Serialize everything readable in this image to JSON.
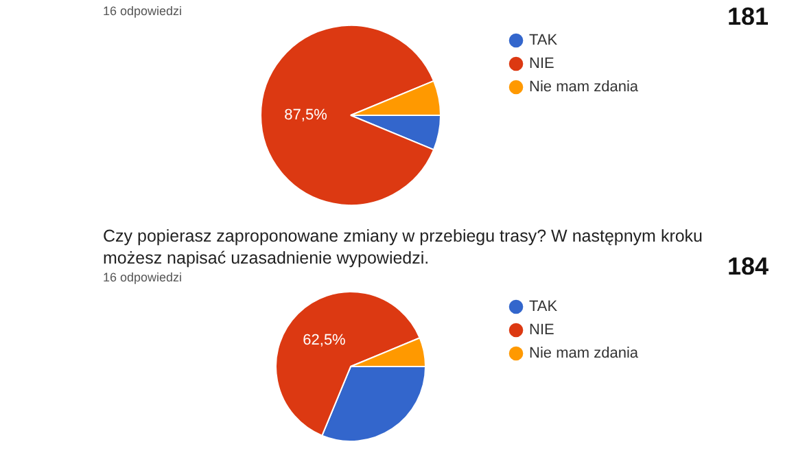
{
  "chart_data": [
    {
      "type": "pie",
      "subtitle": "16 odpowiedzi",
      "annotations": [
        "181"
      ],
      "categories": [
        "TAK",
        "NIE",
        "Nie mam zdania"
      ],
      "values": [
        6.25,
        87.5,
        6.25
      ],
      "colors": [
        "#3366cc",
        "#dc3912",
        "#ff9900"
      ],
      "value_labels": [
        null,
        "87,5%",
        null
      ],
      "legend": "right"
    },
    {
      "type": "pie",
      "title": "Czy popierasz zaproponowane zmiany w przebiegu trasy?   W następnym kroku możesz napisać uzasadnienie wypowiedzi.",
      "subtitle": "16 odpowiedzi",
      "annotations": [
        "184"
      ],
      "categories": [
        "TAK",
        "NIE",
        "Nie mam zdania"
      ],
      "values": [
        31.25,
        62.5,
        6.25
      ],
      "colors": [
        "#3366cc",
        "#dc3912",
        "#ff9900"
      ],
      "value_labels": [
        null,
        "62,5%",
        null
      ],
      "legend": "right"
    }
  ]
}
